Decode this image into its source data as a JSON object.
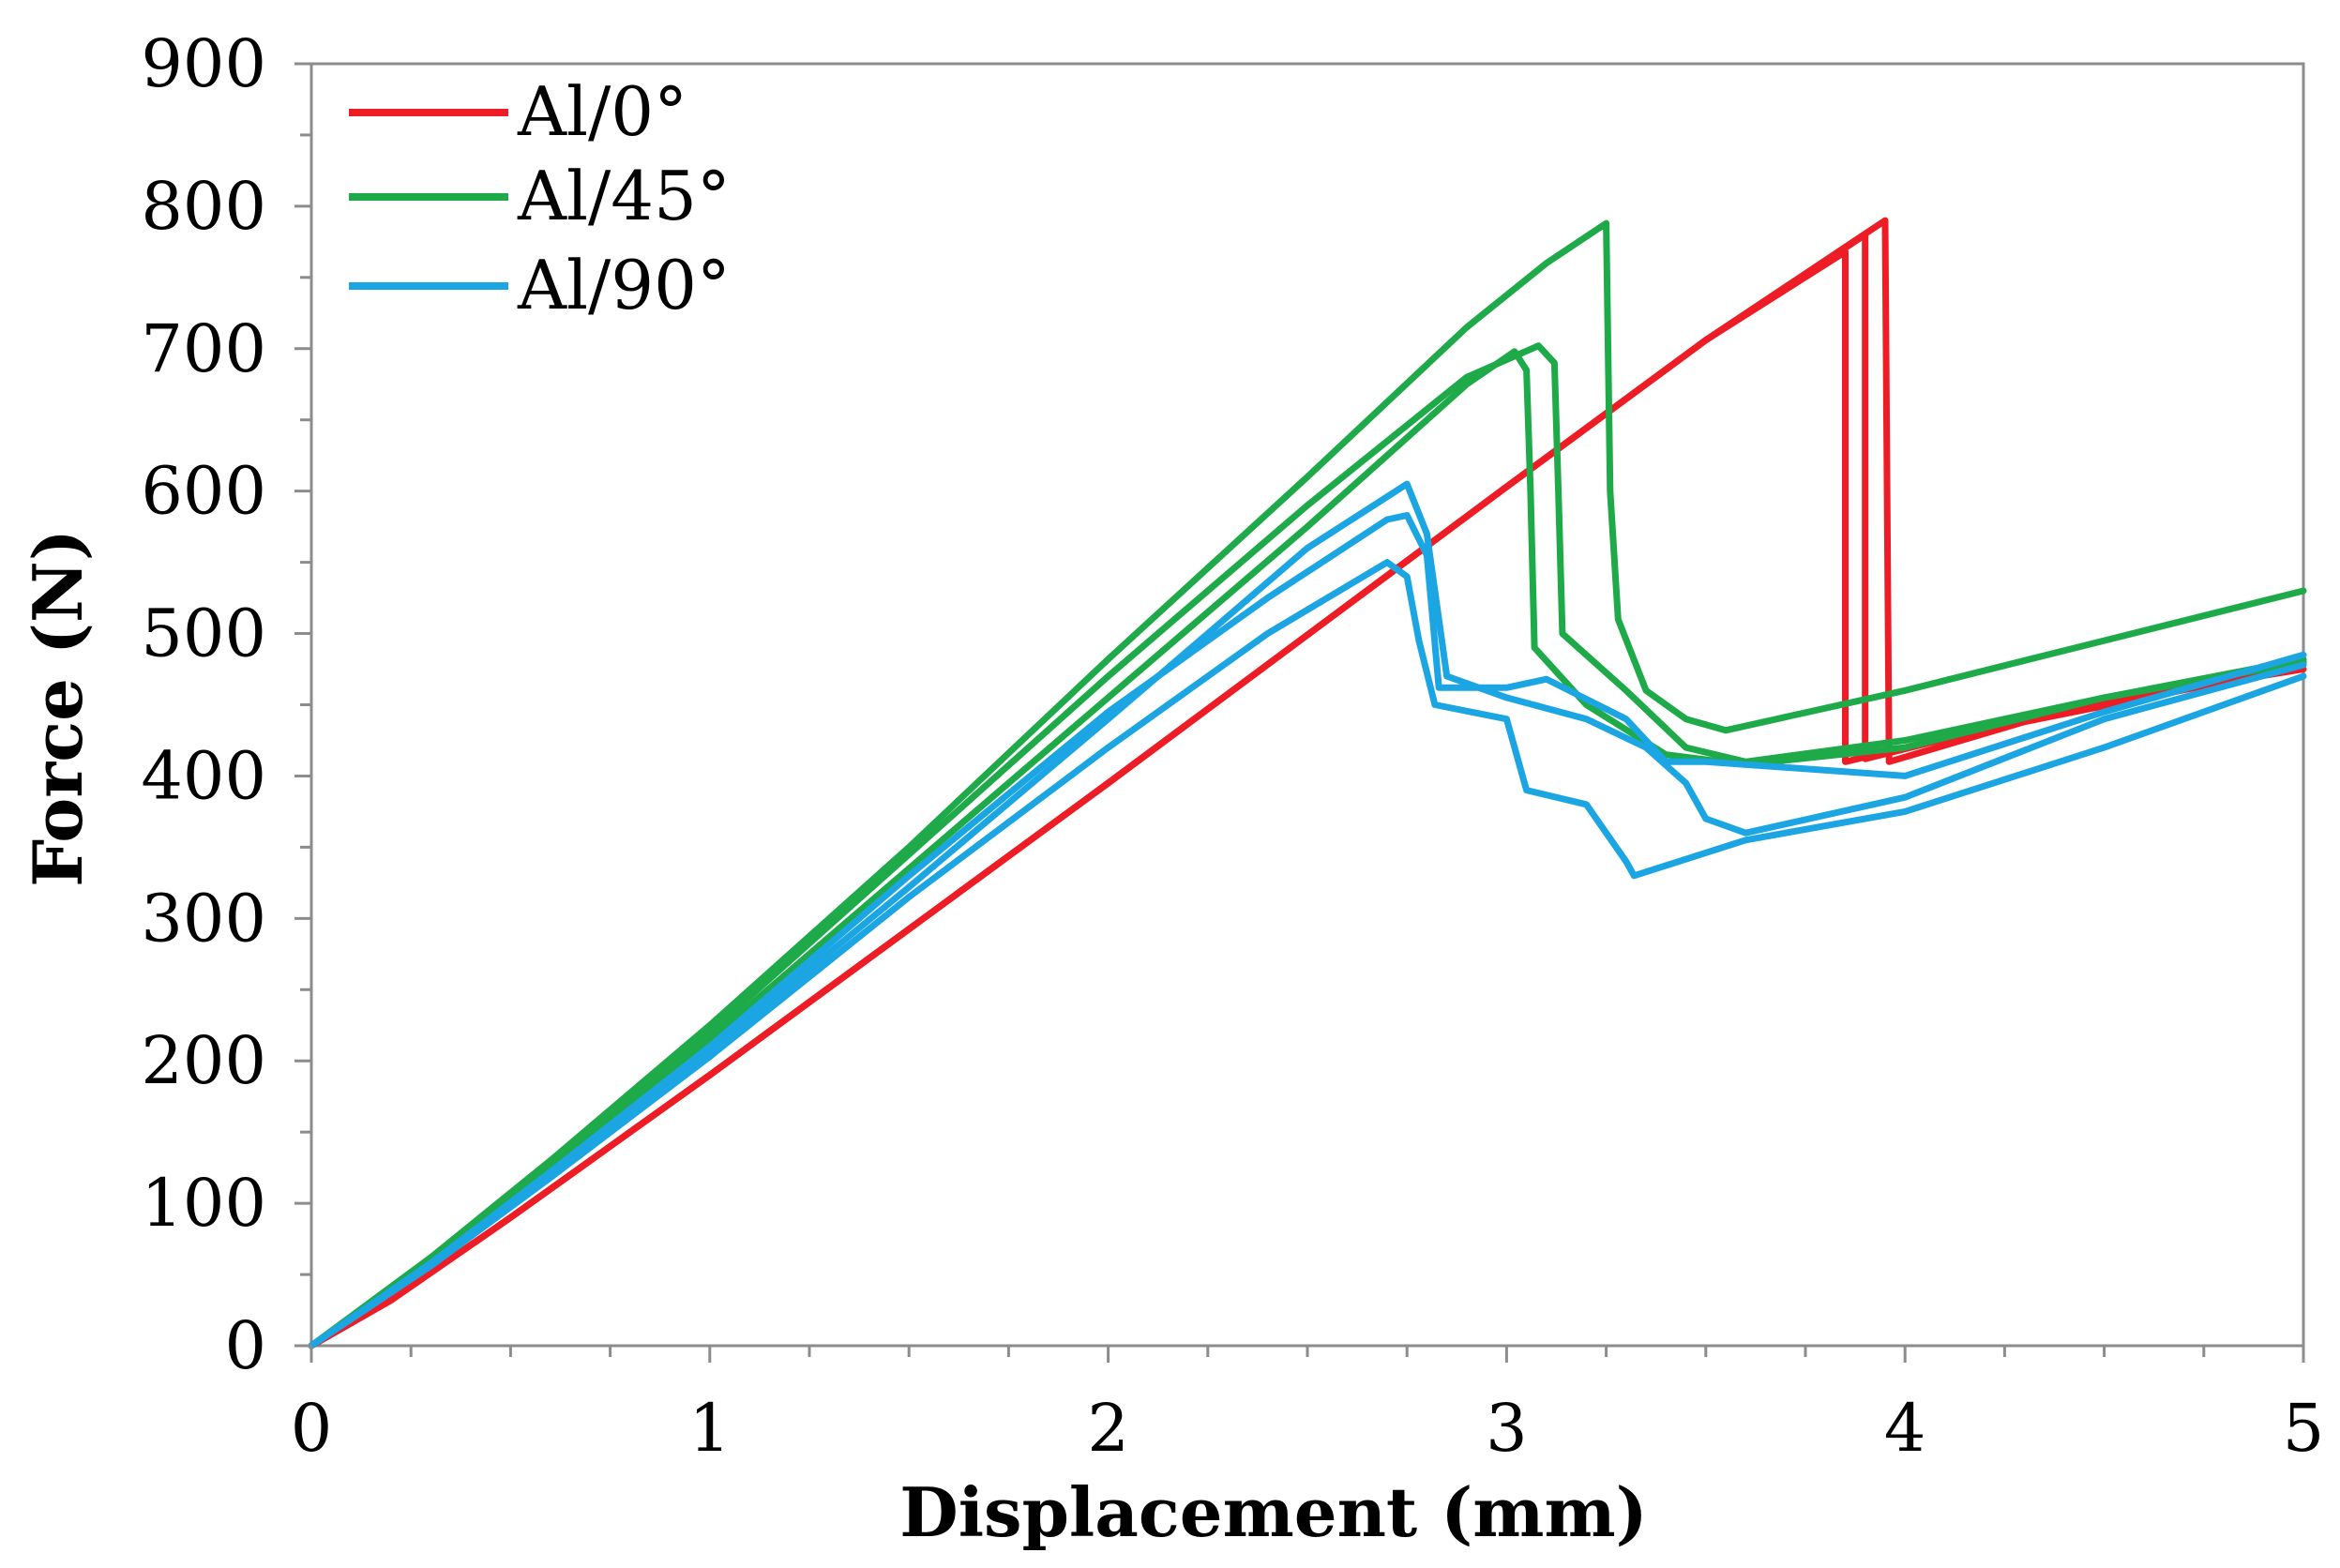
{
  "chart_data": {
    "type": "line",
    "title": "",
    "xlabel": "Displacement (mm)",
    "ylabel": "Force (N)",
    "xlim": [
      0,
      5
    ],
    "ylim": [
      0,
      900
    ],
    "xticks": [
      0,
      1,
      2,
      3,
      4,
      5
    ],
    "yticks": [
      0,
      100,
      200,
      300,
      400,
      500,
      600,
      700,
      800,
      900
    ],
    "xtick_labels": [
      "0",
      "1",
      "2",
      "3",
      "4",
      "5"
    ],
    "ytick_labels": [
      "0",
      "100",
      "200",
      "300",
      "400",
      "500",
      "600",
      "700",
      "800",
      "900"
    ],
    "grid": false,
    "legend_position": "top-left",
    "legend": [
      {
        "label": "Al/0°",
        "color": "#ee1c24"
      },
      {
        "label": "Al/45°",
        "color": "#1faa4a"
      },
      {
        "label": "Al/90°",
        "color": "#1ba5e3"
      }
    ],
    "series": [
      {
        "name": "Al/0° (a)",
        "group": "Al/0°",
        "color": "#ee1c24",
        "points": [
          [
            0,
            0
          ],
          [
            0.2,
            32
          ],
          [
            0.5,
            90
          ],
          [
            1,
            190
          ],
          [
            2,
            395
          ],
          [
            3,
            603
          ],
          [
            3.5,
            706
          ],
          [
            3.85,
            768
          ],
          [
            3.85,
            410
          ],
          [
            4.3,
            440
          ],
          [
            4.8,
            468
          ],
          [
            5,
            478
          ]
        ]
      },
      {
        "name": "Al/0° (b)",
        "group": "Al/0°",
        "color": "#ee1c24",
        "points": [
          [
            0,
            0
          ],
          [
            0.2,
            32
          ],
          [
            0.5,
            90
          ],
          [
            1,
            190
          ],
          [
            2,
            395
          ],
          [
            3,
            603
          ],
          [
            3.5,
            706
          ],
          [
            3.9,
            780
          ],
          [
            3.9,
            412
          ],
          [
            4.3,
            440
          ],
          [
            4.8,
            470
          ],
          [
            5,
            480
          ]
        ]
      },
      {
        "name": "Al/0° (c)",
        "group": "Al/0°",
        "color": "#ee1c24",
        "points": [
          [
            0,
            0
          ],
          [
            0.2,
            32
          ],
          [
            0.5,
            90
          ],
          [
            1,
            190
          ],
          [
            2,
            395
          ],
          [
            3,
            603
          ],
          [
            3.5,
            706
          ],
          [
            3.95,
            790
          ],
          [
            3.96,
            410
          ],
          [
            4.3,
            438
          ],
          [
            4.8,
            466
          ],
          [
            5,
            475
          ]
        ]
      },
      {
        "name": "Al/45° (a)",
        "group": "Al/45°",
        "color": "#1faa4a",
        "points": [
          [
            0,
            0
          ],
          [
            0.3,
            60
          ],
          [
            0.6,
            125
          ],
          [
            1,
            215
          ],
          [
            1.5,
            335
          ],
          [
            2,
            455
          ],
          [
            2.5,
            575
          ],
          [
            2.9,
            675
          ],
          [
            3.02,
            698
          ],
          [
            3.05,
            685
          ],
          [
            3.06,
            600
          ],
          [
            3.07,
            490
          ],
          [
            3.2,
            450
          ],
          [
            3.4,
            415
          ],
          [
            3.6,
            408
          ],
          [
            4,
            420
          ],
          [
            4.5,
            455
          ],
          [
            5,
            482
          ]
        ]
      },
      {
        "name": "Al/45° (b)",
        "group": "Al/45°",
        "color": "#1faa4a",
        "points": [
          [
            0,
            0
          ],
          [
            0.3,
            60
          ],
          [
            0.6,
            127
          ],
          [
            1,
            220
          ],
          [
            1.5,
            345
          ],
          [
            2,
            470
          ],
          [
            2.5,
            590
          ],
          [
            2.9,
            680
          ],
          [
            3.08,
            702
          ],
          [
            3.12,
            690
          ],
          [
            3.13,
            600
          ],
          [
            3.14,
            500
          ],
          [
            3.3,
            460
          ],
          [
            3.45,
            420
          ],
          [
            3.6,
            410
          ],
          [
            4,
            425
          ],
          [
            4.5,
            455
          ],
          [
            5,
            480
          ]
        ]
      },
      {
        "name": "Al/45° (c)",
        "group": "Al/45°",
        "color": "#1faa4a",
        "points": [
          [
            0,
            0
          ],
          [
            0.3,
            62
          ],
          [
            0.6,
            130
          ],
          [
            1,
            225
          ],
          [
            1.5,
            350
          ],
          [
            2,
            482
          ],
          [
            2.5,
            610
          ],
          [
            2.9,
            715
          ],
          [
            3.1,
            760
          ],
          [
            3.25,
            788
          ],
          [
            3.26,
            600
          ],
          [
            3.28,
            510
          ],
          [
            3.35,
            460
          ],
          [
            3.45,
            440
          ],
          [
            3.55,
            432
          ],
          [
            4,
            460
          ],
          [
            4.5,
            495
          ],
          [
            5,
            530
          ]
        ]
      },
      {
        "name": "Al/90° (a)",
        "group": "Al/90°",
        "color": "#1ba5e3",
        "points": [
          [
            0,
            0
          ],
          [
            0.3,
            58
          ],
          [
            0.6,
            122
          ],
          [
            1,
            210
          ],
          [
            1.5,
            330
          ],
          [
            2,
            445
          ],
          [
            2.4,
            525
          ],
          [
            2.7,
            580
          ],
          [
            2.75,
            583
          ],
          [
            2.8,
            555
          ],
          [
            2.83,
            462
          ],
          [
            3,
            462
          ],
          [
            3.1,
            468
          ],
          [
            3.3,
            440
          ],
          [
            3.4,
            410
          ],
          [
            3.5,
            410
          ],
          [
            4,
            400
          ],
          [
            4.5,
            445
          ],
          [
            5,
            485
          ]
        ]
      },
      {
        "name": "Al/90° (b)",
        "group": "Al/90°",
        "color": "#1ba5e3",
        "points": [
          [
            0,
            0
          ],
          [
            0.3,
            58
          ],
          [
            0.6,
            120
          ],
          [
            1,
            207
          ],
          [
            1.5,
            322
          ],
          [
            2,
            440
          ],
          [
            2.5,
            560
          ],
          [
            2.75,
            605
          ],
          [
            2.8,
            570
          ],
          [
            2.85,
            470
          ],
          [
            3,
            455
          ],
          [
            3.2,
            440
          ],
          [
            3.35,
            420
          ],
          [
            3.45,
            395
          ],
          [
            3.5,
            370
          ],
          [
            3.6,
            360
          ],
          [
            4,
            385
          ],
          [
            4.5,
            440
          ],
          [
            5,
            478
          ]
        ]
      },
      {
        "name": "Al/90° (c)",
        "group": "Al/90°",
        "color": "#1ba5e3",
        "points": [
          [
            0,
            0
          ],
          [
            0.3,
            56
          ],
          [
            0.6,
            118
          ],
          [
            1,
            203
          ],
          [
            1.5,
            315
          ],
          [
            2,
            420
          ],
          [
            2.4,
            500
          ],
          [
            2.7,
            550
          ],
          [
            2.75,
            540
          ],
          [
            2.78,
            495
          ],
          [
            2.82,
            450
          ],
          [
            3,
            440
          ],
          [
            3.05,
            390
          ],
          [
            3.2,
            380
          ],
          [
            3.3,
            340
          ],
          [
            3.32,
            330
          ],
          [
            3.6,
            355
          ],
          [
            4,
            375
          ],
          [
            4.5,
            420
          ],
          [
            5,
            470
          ]
        ]
      }
    ]
  }
}
